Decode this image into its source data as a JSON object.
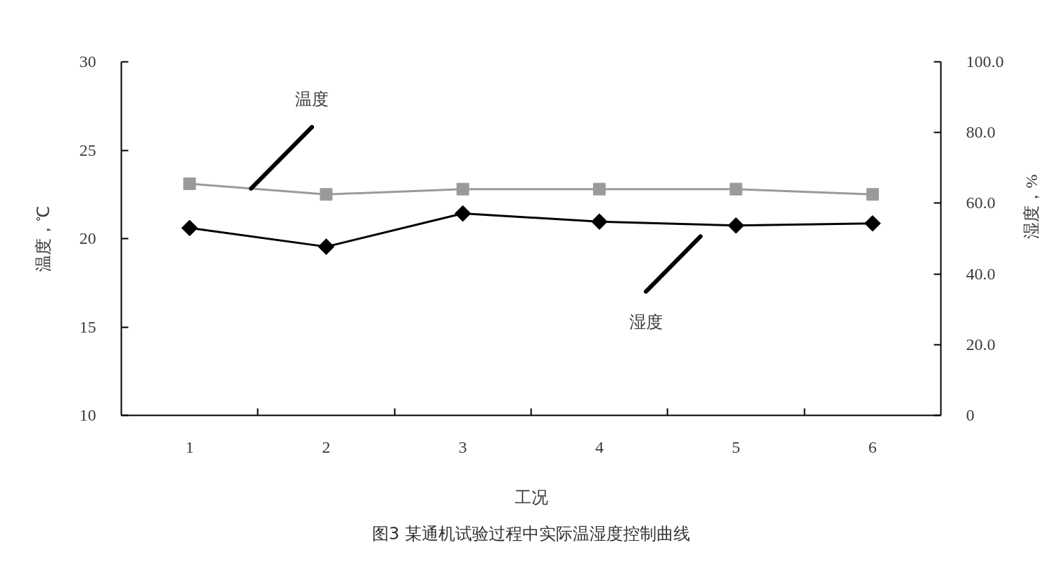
{
  "chart_data": {
    "type": "line",
    "title": "图3 某通机试验过程中实际温湿度控制曲线",
    "xlabel": "工况",
    "ylabel": "温度，℃",
    "y2label": "湿度，%",
    "categories": [
      "1",
      "2",
      "3",
      "4",
      "5",
      "6"
    ],
    "ylim": [
      10,
      30
    ],
    "yticks": [
      10,
      15,
      20,
      25,
      30
    ],
    "y2lim": [
      0,
      100
    ],
    "y2ticks": [
      0,
      {
        "value": 20,
        "label": "20.0"
      },
      {
        "value": 40,
        "label": "40.0"
      },
      {
        "value": 60,
        "label": "60.0"
      },
      {
        "value": 80,
        "label": "80.0"
      },
      {
        "value": 100,
        "label": "100.0"
      }
    ],
    "grid": false,
    "legend": false,
    "line_style": "solid",
    "series": [
      {
        "name": "温度",
        "color": "#9a9a9a",
        "marker": "square",
        "values": [
          23.1,
          22.5,
          22.8,
          22.8,
          22.8,
          22.5
        ]
      },
      {
        "name": "湿度",
        "color": "#000000",
        "marker": "diamond",
        "axis": "y2",
        "values": [
          53.0,
          47.7,
          57.1,
          54.8,
          53.7,
          54.3
        ]
      }
    ]
  }
}
